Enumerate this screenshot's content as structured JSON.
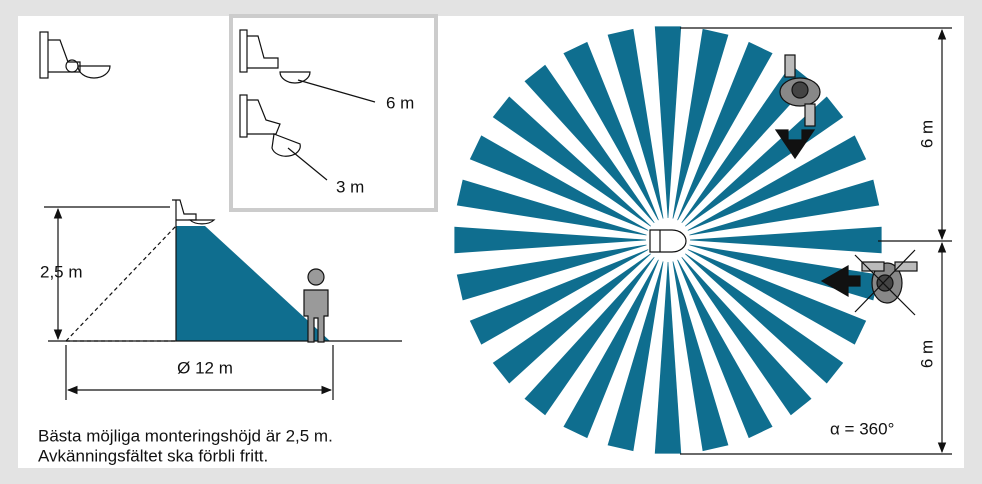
{
  "inset": {
    "labels": [
      "6 m",
      "3 m"
    ]
  },
  "side_view": {
    "height_label": "2,5 m",
    "diameter_label": "Ø 12 m"
  },
  "caption": {
    "lines": [
      "Bästa möjliga monteringshöjd är 2,5 m.",
      "Avkänningsfältet ska förbli fritt."
    ]
  },
  "top_view": {
    "distance_labels": [
      "6 m",
      "6 m"
    ],
    "angle_label": "α = 360°"
  }
}
